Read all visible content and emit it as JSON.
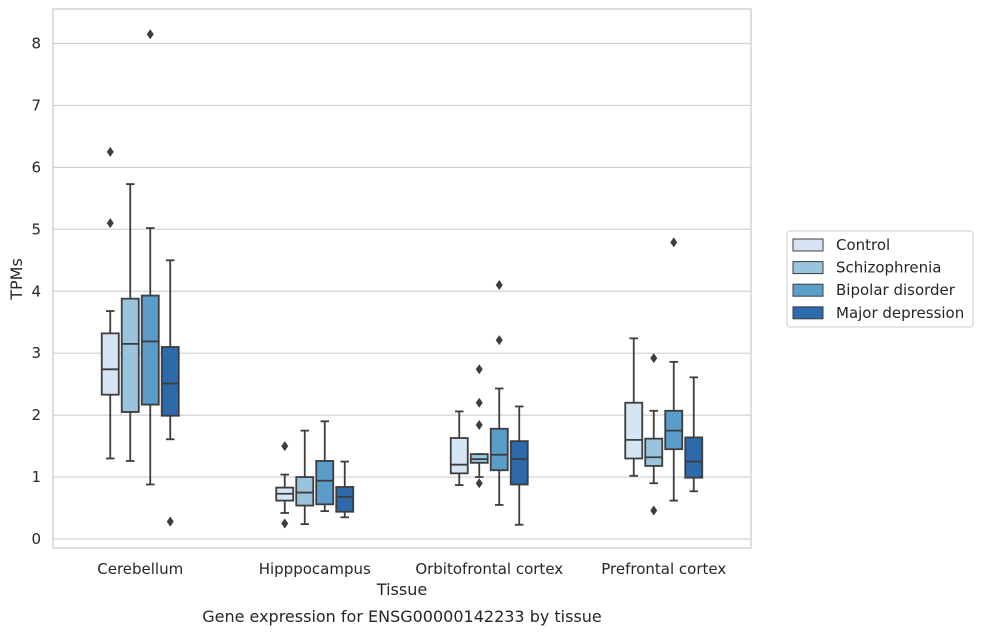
{
  "chart_data": {
    "type": "box",
    "xlabel": "Tissue",
    "ylabel": "TPMs",
    "caption": "Gene expression for ENSG00000142233 by tissue",
    "ylim": [
      -0.15,
      8.55
    ],
    "yticks": [
      "0",
      "1",
      "2",
      "3",
      "4",
      "5",
      "6",
      "7",
      "8"
    ],
    "grid": true,
    "legend_position": "right",
    "categories": [
      "Cerebellum",
      "Hipppocampus",
      "Orbitofrontal cortex",
      "Prefrontal cortex"
    ],
    "series": [
      {
        "name": "Control",
        "color": "#d6e5f4",
        "boxes": [
          {
            "whislo": 1.3,
            "q1": 2.33,
            "med": 2.74,
            "q3": 3.32,
            "whishi": 3.68,
            "fliers": [
              5.1,
              6.25
            ]
          },
          {
            "whislo": 0.42,
            "q1": 0.62,
            "med": 0.73,
            "q3": 0.83,
            "whishi": 1.04,
            "fliers": [
              1.5,
              0.25
            ]
          },
          {
            "whislo": 0.87,
            "q1": 1.06,
            "med": 1.2,
            "q3": 1.63,
            "whishi": 2.06,
            "fliers": []
          },
          {
            "whislo": 1.02,
            "q1": 1.3,
            "med": 1.6,
            "q3": 2.2,
            "whishi": 3.24,
            "fliers": []
          }
        ]
      },
      {
        "name": "Schizophrenia",
        "color": "#9ac4de",
        "boxes": [
          {
            "whislo": 1.26,
            "q1": 2.05,
            "med": 3.15,
            "q3": 3.88,
            "whishi": 5.73,
            "fliers": []
          },
          {
            "whislo": 0.24,
            "q1": 0.54,
            "med": 0.75,
            "q3": 1.0,
            "whishi": 1.75,
            "fliers": []
          },
          {
            "whislo": 1.0,
            "q1": 1.23,
            "med": 1.29,
            "q3": 1.37,
            "whishi": 1.37,
            "fliers": [
              2.74,
              2.2,
              1.84,
              0.9
            ]
          },
          {
            "whislo": 0.9,
            "q1": 1.18,
            "med": 1.32,
            "q3": 1.62,
            "whishi": 2.07,
            "fliers": [
              2.92,
              0.46
            ]
          }
        ]
      },
      {
        "name": "Bipolar disorder",
        "color": "#5a9dcb",
        "boxes": [
          {
            "whislo": 0.88,
            "q1": 2.17,
            "med": 3.19,
            "q3": 3.93,
            "whishi": 5.02,
            "fliers": [
              8.15
            ]
          },
          {
            "whislo": 0.45,
            "q1": 0.56,
            "med": 0.94,
            "q3": 1.26,
            "whishi": 1.9,
            "fliers": []
          },
          {
            "whislo": 0.55,
            "q1": 1.11,
            "med": 1.36,
            "q3": 1.78,
            "whishi": 2.43,
            "fliers": [
              4.1,
              3.21
            ]
          },
          {
            "whislo": 0.62,
            "q1": 1.45,
            "med": 1.75,
            "q3": 2.07,
            "whishi": 2.86,
            "fliers": [
              4.79
            ]
          }
        ]
      },
      {
        "name": "Major depression",
        "color": "#2c6aab",
        "boxes": [
          {
            "whislo": 1.61,
            "q1": 1.99,
            "med": 2.51,
            "q3": 3.1,
            "whishi": 4.5,
            "fliers": [
              0.28
            ]
          },
          {
            "whislo": 0.35,
            "q1": 0.44,
            "med": 0.68,
            "q3": 0.84,
            "whishi": 1.25,
            "fliers": []
          },
          {
            "whislo": 0.23,
            "q1": 0.88,
            "med": 1.29,
            "q3": 1.58,
            "whishi": 2.14,
            "fliers": []
          },
          {
            "whislo": 0.77,
            "q1": 0.99,
            "med": 1.25,
            "q3": 1.64,
            "whishi": 2.61,
            "fliers": []
          }
        ]
      }
    ]
  }
}
